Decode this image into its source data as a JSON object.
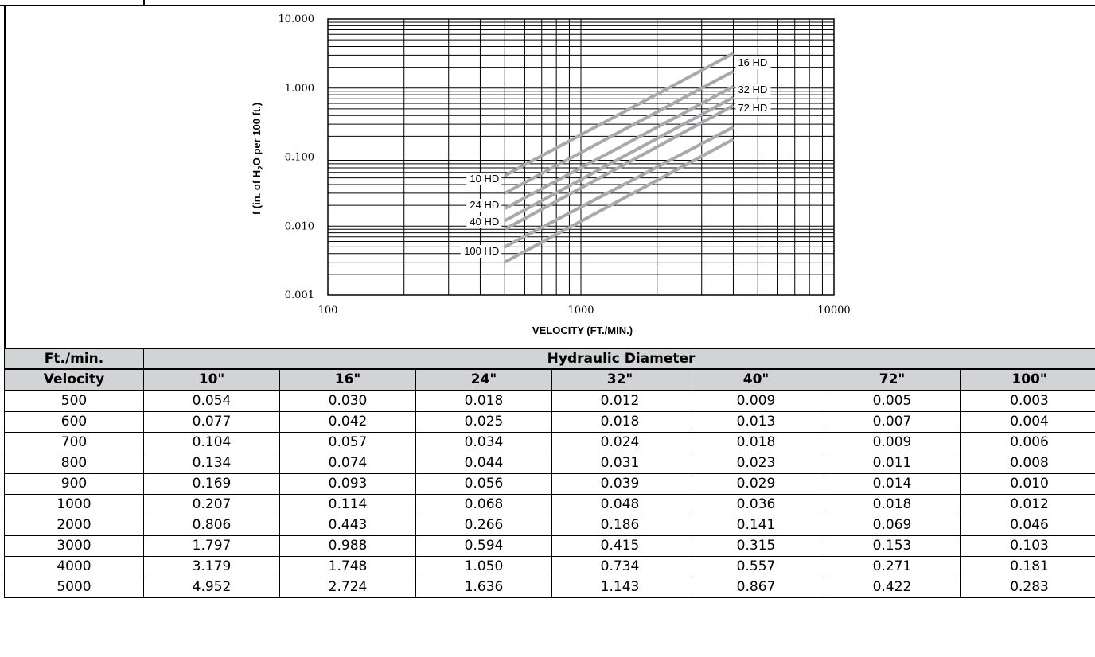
{
  "chart_data": {
    "type": "line",
    "xlabel": "VELOCITY (FT./MIN.)",
    "ylabel_parts": [
      "f (in. of H",
      "2",
      "O per 100 ft.)"
    ],
    "x_scale": "log",
    "y_scale": "log",
    "xlim": [
      100,
      10000
    ],
    "ylim": [
      0.001,
      10
    ],
    "x_tick_labels": [
      "100",
      "1000",
      "10000"
    ],
    "y_tick_labels": [
      "10.000",
      "1.000",
      "0.100",
      "0.010",
      "0.001"
    ],
    "grid": true,
    "series": [
      {
        "name": "10 HD",
        "x": [
          500,
          4000
        ],
        "y": [
          0.054,
          3.179
        ]
      },
      {
        "name": "16 HD",
        "x": [
          500,
          4000
        ],
        "y": [
          0.03,
          1.748
        ]
      },
      {
        "name": "24 HD",
        "x": [
          500,
          4000
        ],
        "y": [
          0.018,
          1.05
        ]
      },
      {
        "name": "32 HD",
        "x": [
          500,
          4000
        ],
        "y": [
          0.012,
          0.734
        ]
      },
      {
        "name": "40 HD",
        "x": [
          500,
          4000
        ],
        "y": [
          0.009,
          0.557
        ]
      },
      {
        "name": "72 HD",
        "x": [
          500,
          4000
        ],
        "y": [
          0.005,
          0.271
        ]
      },
      {
        "name": "100 HD",
        "x": [
          500,
          4000
        ],
        "y": [
          0.003,
          0.181
        ]
      }
    ],
    "line_color": "#a7a9ac"
  },
  "table": {
    "col1_header": "Ft./min.",
    "group_header": "Hydraulic Diameter",
    "velocity_header": "Velocity",
    "columns": [
      "10\"",
      "16\"",
      "24\"",
      "32\"",
      "40\"",
      "72\"",
      "100\""
    ],
    "rows": [
      [
        "500",
        "0.054",
        "0.030",
        "0.018",
        "0.012",
        "0.009",
        "0.005",
        "0.003"
      ],
      [
        "600",
        "0.077",
        "0.042",
        "0.025",
        "0.018",
        "0.013",
        "0.007",
        "0.004"
      ],
      [
        "700",
        "0.104",
        "0.057",
        "0.034",
        "0.024",
        "0.018",
        "0.009",
        "0.006"
      ],
      [
        "800",
        "0.134",
        "0.074",
        "0.044",
        "0.031",
        "0.023",
        "0.011",
        "0.008"
      ],
      [
        "900",
        "0.169",
        "0.093",
        "0.056",
        "0.039",
        "0.029",
        "0.014",
        "0.010"
      ],
      [
        "1000",
        "0.207",
        "0.114",
        "0.068",
        "0.048",
        "0.036",
        "0.018",
        "0.012"
      ],
      [
        "2000",
        "0.806",
        "0.443",
        "0.266",
        "0.186",
        "0.141",
        "0.069",
        "0.046"
      ],
      [
        "3000",
        "1.797",
        "0.988",
        "0.594",
        "0.415",
        "0.315",
        "0.153",
        "0.103"
      ],
      [
        "4000",
        "3.179",
        "1.748",
        "1.050",
        "0.734",
        "0.557",
        "0.271",
        "0.181"
      ],
      [
        "5000",
        "4.952",
        "2.724",
        "1.636",
        "1.143",
        "0.867",
        "0.422",
        "0.283"
      ]
    ],
    "header_bg": "#d1d3d4"
  }
}
